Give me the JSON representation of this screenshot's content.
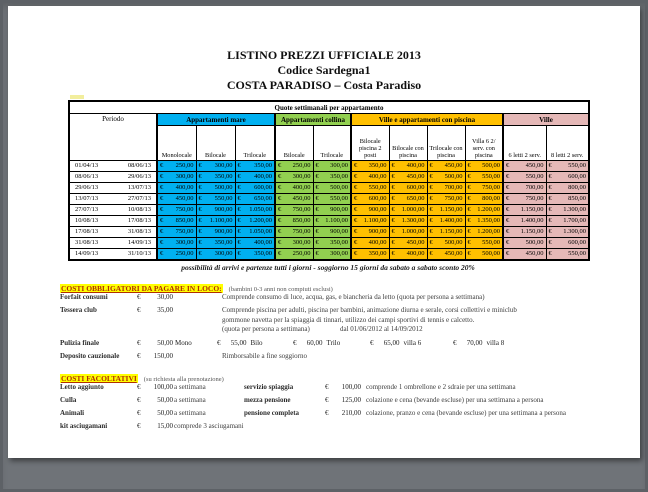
{
  "title": {
    "line1": "LISTINO PREZZI UFFICIALE 2013",
    "line2": "Codice Sardegna1",
    "line3": "COSTA PARADISO – Costa Paradiso"
  },
  "table": {
    "caption": "Quote settimanali per appartamento",
    "period_header": "Periodo",
    "currency": "€",
    "groups": [
      {
        "label": "Appartamenti mare",
        "color": "#00b0f0",
        "cols": [
          "Monolocale",
          "Bilocale",
          "Trilocale"
        ]
      },
      {
        "label": "Appartamenti collina",
        "color": "#92d050",
        "cols": [
          "Bilocale",
          "Trilocale"
        ]
      },
      {
        "label": "Ville e appartamenti con piscina",
        "color": "#ffc000",
        "cols": [
          "Bilocale piscina 2 posti",
          "Bilocale con piscina",
          "Trilocale con piscina",
          "Villa 6 2/ serv. con piscina"
        ]
      },
      {
        "label": "Ville",
        "color": "#e5b8b7",
        "cols": [
          "6 letti 2 serv.",
          "8 letti 2 serv."
        ]
      }
    ],
    "rows": [
      {
        "from": "01/04/13",
        "to": "08/06/13",
        "values": [
          "250,00",
          "300,00",
          "350,00",
          "250,00",
          "300,00",
          "350,00",
          "400,00",
          "450,00",
          "500,00",
          "450,00",
          "550,00"
        ]
      },
      {
        "from": "08/06/13",
        "to": "29/06/13",
        "values": [
          "300,00",
          "350,00",
          "400,00",
          "300,00",
          "350,00",
          "400,00",
          "450,00",
          "500,00",
          "550,00",
          "550,00",
          "600,00"
        ]
      },
      {
        "from": "29/06/13",
        "to": "13/07/13",
        "values": [
          "400,00",
          "500,00",
          "600,00",
          "400,00",
          "500,00",
          "550,00",
          "600,00",
          "700,00",
          "750,00",
          "700,00",
          "800,00"
        ]
      },
      {
        "from": "13/07/13",
        "to": "27/07/13",
        "values": [
          "450,00",
          "550,00",
          "650,00",
          "450,00",
          "550,00",
          "600,00",
          "650,00",
          "750,00",
          "800,00",
          "750,00",
          "850,00"
        ]
      },
      {
        "from": "27/07/13",
        "to": "10/08/13",
        "values": [
          "750,00",
          "900,00",
          "1.050,00",
          "750,00",
          "900,00",
          "900,00",
          "1.000,00",
          "1.150,00",
          "1.200,00",
          "1.150,00",
          "1.300,00"
        ]
      },
      {
        "from": "10/08/13",
        "to": "17/08/13",
        "values": [
          "850,00",
          "1.100,00",
          "1.200,00",
          "850,00",
          "1.100,00",
          "1.100,00",
          "1.300,00",
          "1.400,00",
          "1.350,00",
          "1.400,00",
          "1.700,00"
        ]
      },
      {
        "from": "17/08/13",
        "to": "31/08/13",
        "values": [
          "750,00",
          "900,00",
          "1.050,00",
          "750,00",
          "900,00",
          "900,00",
          "1.000,00",
          "1.150,00",
          "1.200,00",
          "1.150,00",
          "1.300,00"
        ]
      },
      {
        "from": "31/08/13",
        "to": "14/09/13",
        "values": [
          "300,00",
          "350,00",
          "400,00",
          "300,00",
          "350,00",
          "400,00",
          "450,00",
          "500,00",
          "550,00",
          "500,00",
          "600,00"
        ]
      },
      {
        "from": "14/09/13",
        "to": "31/10/13",
        "values": [
          "250,00",
          "300,00",
          "350,00",
          "250,00",
          "300,00",
          "350,00",
          "400,00",
          "450,00",
          "500,00",
          "450,00",
          "550,00"
        ]
      }
    ],
    "note": "possibilità di arrivi e partenze tutti i giorni - soggiorno 15 giorni da sabato a sabato sconto 20%"
  },
  "obbligatori": {
    "heading": "COSTI OBBLIGATORI DA PAGARE IN LOCO:",
    "heading_note": "(bambini 0-3 anni non compiuti esclusi)",
    "forfait": {
      "label": "Forfait consumi",
      "amount": "30,00",
      "desc": "Comprende consumo di luce, acqua, gas, e biancheria da letto (quota per persona a settimana)"
    },
    "tessera": {
      "label": "Tessera club",
      "amount": "35,00",
      "desc1": "Comprende piscina per adulti, piscina per bambini, animazione diurna e serale, corsi collettivi e miniclub",
      "desc2": "gommone navetta per la spiaggia di tinnari, utilizzo dei campi sportivi di tennis e calcetto.",
      "desc3a": "(quota per persona a settimana)",
      "desc3b": "dal 01/06/2012 al 14/09/2012"
    },
    "pulizia": {
      "label": "Pulizia finale",
      "amount": "50,00",
      "unit": "Mono",
      "items": [
        {
          "amount": "55,00",
          "unit": "Bilo"
        },
        {
          "amount": "60,00",
          "unit": "Trilo"
        },
        {
          "amount": "65,00",
          "unit": "villa 6"
        },
        {
          "amount": "70,00",
          "unit": "villa 8"
        }
      ]
    },
    "deposito": {
      "label": "Deposito cauzionale",
      "amount": "150,00",
      "desc": "Rimborsabile a fine soggiorno"
    }
  },
  "facoltativi": {
    "heading": "COSTI FACOLTATIVI",
    "heading_note": "(su richiesta alla prenotazione)",
    "rows": [
      {
        "label": "Letto aggiunto",
        "amount": "100,00",
        "desc": "a settimana",
        "rlabel": "servizio spiaggia",
        "ramount": "100,00",
        "rdesc": "comprende 1 ombrellone e 2 sdraie per una settimana"
      },
      {
        "label": "Culla",
        "amount": "50,00",
        "desc": "a settimana",
        "rlabel": "mezza pensione",
        "ramount": "125,00",
        "rdesc": "colazione e cena (bevande escluse) per una settimana a persona"
      },
      {
        "label": "Animali",
        "amount": "50,00",
        "desc": "a settimana",
        "rlabel": "pensione completa",
        "ramount": "210,00",
        "rdesc": "colazione, pranzo e cena (bevande escluse) per una settimana a persona"
      },
      {
        "label": "kit asciugamani",
        "amount": "15,00",
        "desc": "comprede 3 asciugamani"
      }
    ]
  }
}
